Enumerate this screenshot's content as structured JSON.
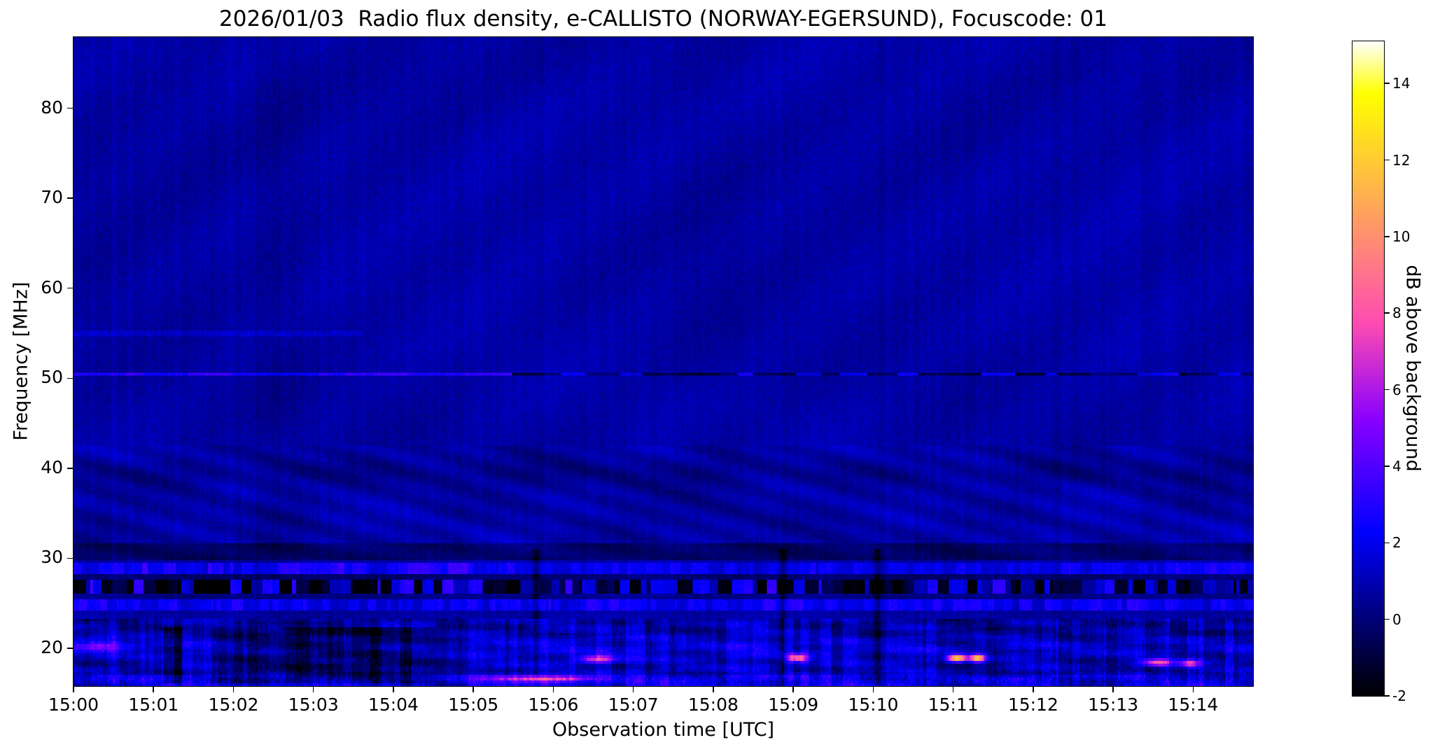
{
  "chart_data": {
    "type": "heatmap",
    "title": "2026/01/03  Radio flux density, e-CALLISTO (NORWAY-EGERSUND), Focuscode: 01",
    "date": "2026/01/03",
    "instrument": "e-CALLISTO",
    "station": "NORWAY-EGERSUND",
    "focuscode": "01",
    "xlabel": "Observation time [UTC]",
    "ylabel": "Frequency [MHz]",
    "colorbar_label": "dB above background",
    "colormap": "gnuplot2",
    "x_tick_labels": [
      "15:00",
      "15:01",
      "15:02",
      "15:03",
      "15:04",
      "15:05",
      "15:06",
      "15:07",
      "15:08",
      "15:09",
      "15:10",
      "15:11",
      "15:12",
      "15:13",
      "15:14"
    ],
    "x_tick_minutes": [
      0,
      1,
      2,
      3,
      4,
      5,
      6,
      7,
      8,
      9,
      10,
      11,
      12,
      13,
      14
    ],
    "y_ticks_mhz": [
      20,
      30,
      40,
      50,
      60,
      70,
      80
    ],
    "colorbar_ticks_db": [
      -2,
      0,
      2,
      4,
      6,
      8,
      10,
      12,
      14
    ],
    "time_start_utc": "15:00",
    "time_span_minutes": 14.75,
    "freq_min_mhz": 15.8,
    "freq_max_mhz": 87.9,
    "db_min": -2,
    "db_max": 15.1,
    "background_level_db": 0.75,
    "grid": false,
    "features": {
      "interference_line": {
        "freq_mhz": 50.5,
        "strong_until_minute": 5.3,
        "db_strong": 2.6,
        "db_late_mix": [
          -1.5,
          1.8
        ]
      },
      "faint_line": {
        "freq_mhz": 55.0,
        "until_minute": 3.6,
        "db": 0.7
      },
      "ionospheric_ripple_band_mhz": [
        31.5,
        42.5
      ],
      "dark_band_mhz": [
        29.9,
        31.6
      ],
      "bright_band_upper_mhz": [
        28.1,
        29.4
      ],
      "striped_band_mhz": [
        26.0,
        27.5
      ],
      "bright_band_lower_mhz": [
        24.3,
        25.3
      ],
      "hf_active_band_mhz": [
        15.8,
        23.2
      ],
      "dark_patch": {
        "minutes": [
          1.0,
          4.25
        ],
        "freq_mhz": [
          16.2,
          22.3
        ],
        "db": -1.6
      },
      "dark_streak_minutes": [
        5.78,
        8.87,
        10.05
      ],
      "bursts": [
        {
          "minute": 0.35,
          "freq_mhz": 20.3,
          "sigma_min": 0.25,
          "sigma_mhz": 0.5,
          "db": 3.5
        },
        {
          "minute": 5.9,
          "freq_mhz": 16.6,
          "sigma_min": 0.45,
          "sigma_mhz": 0.25,
          "db": 6.5
        },
        {
          "minute": 6.55,
          "freq_mhz": 18.8,
          "sigma_min": 0.18,
          "sigma_mhz": 0.3,
          "db": 6.5
        },
        {
          "minute": 9.05,
          "freq_mhz": 18.9,
          "sigma_min": 0.09,
          "sigma_mhz": 0.3,
          "db": 8.5
        },
        {
          "minute": 11.05,
          "freq_mhz": 18.9,
          "sigma_min": 0.08,
          "sigma_mhz": 0.3,
          "db": 12
        },
        {
          "minute": 11.3,
          "freq_mhz": 18.9,
          "sigma_min": 0.07,
          "sigma_mhz": 0.3,
          "db": 11
        },
        {
          "minute": 13.55,
          "freq_mhz": 18.4,
          "sigma_min": 0.12,
          "sigma_mhz": 0.3,
          "db": 7.5
        },
        {
          "minute": 13.95,
          "freq_mhz": 18.3,
          "sigma_min": 0.1,
          "sigma_mhz": 0.3,
          "db": 6.0
        }
      ]
    }
  }
}
